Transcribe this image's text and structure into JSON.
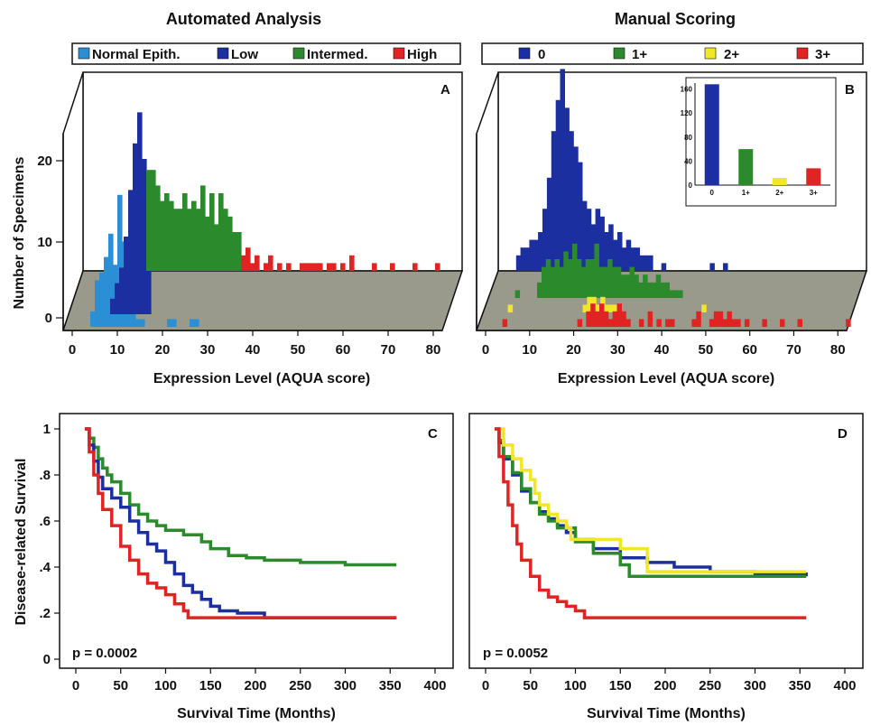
{
  "titles": {
    "left": "Automated Analysis",
    "right": "Manual Scoring"
  },
  "colors": {
    "normal": "#2b8fd6",
    "low": "#1c2fa0",
    "intermed": "#2b8a2b",
    "high": "#e02424",
    "yellow": "#f2e628",
    "floor": "#9a9a8c"
  },
  "chart_data": [
    {
      "panel": "A",
      "type": "bar",
      "title": "Automated Analysis",
      "xlabel": "Expression Level (AQUA score)",
      "ylabel": "Number of Specimens",
      "xticks": [
        "0",
        "10",
        "20",
        "30",
        "40",
        "50",
        "60",
        "70",
        "80"
      ],
      "yticks": [
        "0",
        "10",
        "20"
      ],
      "legend": [
        "Normal Epith.",
        "Low",
        "Intermed.",
        "High"
      ],
      "series": [
        {
          "name": "Normal Epith.",
          "x": [
            2,
            3,
            4,
            5,
            6,
            7,
            8,
            9,
            10,
            11,
            12,
            13,
            19,
            20,
            24,
            25
          ],
          "values": [
            2,
            6,
            7,
            9,
            12,
            8,
            17,
            11,
            5,
            2,
            1,
            1,
            1,
            1,
            1,
            1
          ]
        },
        {
          "name": "Low",
          "x": [
            4,
            5,
            6,
            7,
            8,
            9,
            10,
            11,
            12
          ],
          "values": [
            2,
            4,
            6,
            10,
            16,
            22,
            26,
            20,
            12
          ]
        },
        {
          "name": "Intermed.",
          "x": [
            12,
            13,
            14,
            15,
            16,
            17,
            18,
            19,
            20,
            21,
            22,
            23,
            24,
            25,
            26,
            27,
            28,
            29,
            30,
            31,
            32
          ],
          "values": [
            13,
            13,
            11,
            9,
            10,
            9,
            8,
            8,
            10,
            8,
            9,
            8,
            11,
            7,
            10,
            6,
            10,
            8,
            7,
            5,
            5
          ]
        },
        {
          "name": "High",
          "x": [
            33,
            34,
            35,
            36,
            38,
            39,
            41,
            43,
            46,
            47,
            48,
            49,
            50,
            52,
            53,
            55,
            57,
            62,
            66,
            71,
            76
          ],
          "values": [
            2,
            3,
            1,
            2,
            1,
            2,
            1,
            1,
            1,
            1,
            1,
            1,
            1,
            1,
            1,
            1,
            2,
            1,
            1,
            1,
            1
          ]
        }
      ]
    },
    {
      "panel": "B",
      "type": "bar",
      "title": "Manual Scoring",
      "xlabel": "Expression Level (AQUA score)",
      "xticks": [
        "0",
        "10",
        "20",
        "30",
        "40",
        "50",
        "60",
        "70",
        "80"
      ],
      "legend": [
        "0",
        "1+",
        "2+",
        "3+"
      ],
      "series": [
        {
          "name": "0",
          "x": [
            2,
            3,
            4,
            5,
            6,
            7,
            8,
            9,
            10,
            11,
            12,
            13,
            14,
            15,
            16,
            17,
            18,
            19,
            20,
            21,
            22,
            23,
            24,
            25,
            26,
            27,
            28,
            29,
            30,
            31,
            32,
            35,
            46,
            49
          ],
          "values": [
            2,
            3,
            3,
            4,
            4,
            5,
            8,
            12,
            18,
            22,
            26,
            21,
            18,
            16,
            14,
            9,
            8,
            6,
            8,
            7,
            5,
            6,
            4,
            5,
            3,
            4,
            3,
            3,
            2,
            2,
            2,
            1,
            1,
            1
          ]
        },
        {
          "name": "1+",
          "x": [
            3,
            8,
            9,
            10,
            11,
            12,
            13,
            14,
            15,
            16,
            17,
            18,
            19,
            20,
            21,
            22,
            23,
            24,
            25,
            26,
            27,
            28,
            29,
            30,
            31,
            32,
            33,
            34,
            35,
            36,
            37,
            38,
            39,
            40
          ],
          "values": [
            1,
            2,
            4,
            5,
            4,
            5,
            4,
            6,
            5,
            7,
            5,
            4,
            5,
            5,
            7,
            4,
            4,
            5,
            4,
            4,
            3,
            3,
            4,
            3,
            2,
            3,
            2,
            2,
            3,
            2,
            2,
            1,
            1,
            1
          ]
        },
        {
          "name": "2+",
          "x": [
            3,
            20,
            21,
            22,
            23,
            24,
            25,
            26,
            27,
            47
          ],
          "values": [
            1,
            1,
            2,
            2,
            1,
            2,
            1,
            1,
            1,
            1
          ]
        },
        {
          "name": "3+",
          "x": [
            3,
            20,
            22,
            23,
            24,
            25,
            26,
            27,
            28,
            29,
            30,
            31,
            34,
            36,
            38,
            40,
            41,
            46,
            47,
            50,
            51,
            52,
            53,
            54,
            55,
            56,
            58,
            62,
            66,
            70,
            81
          ],
          "values": [
            1,
            1,
            2,
            3,
            2,
            3,
            2,
            1,
            2,
            3,
            2,
            1,
            1,
            2,
            1,
            1,
            1,
            1,
            2,
            1,
            2,
            2,
            1,
            2,
            1,
            1,
            1,
            1,
            1,
            1,
            1
          ]
        }
      ],
      "inset": {
        "type": "bar",
        "categories": [
          "0",
          "1+",
          "2+",
          "3+"
        ],
        "values": [
          168,
          60,
          12,
          28
        ],
        "yticks": [
          "0",
          "40",
          "80",
          "120",
          "160"
        ],
        "ylim": [
          0,
          170
        ]
      }
    },
    {
      "panel": "C",
      "type": "line",
      "xlabel": "Survival Time (Months)",
      "ylabel": "Disease-related Survival",
      "xticks": [
        "0",
        "50",
        "100",
        "150",
        "200",
        "250",
        "300",
        "350",
        "400"
      ],
      "yticks": [
        "0",
        ".2",
        ".4",
        ".6",
        ".8",
        "1"
      ],
      "xlim": [
        0,
        400
      ],
      "ylim": [
        0,
        1
      ],
      "annotation": "p = 0.0002",
      "series": [
        {
          "name": "Intermed.",
          "color": "#2b8a2b",
          "points": [
            [
              10,
              1
            ],
            [
              15,
              0.96
            ],
            [
              20,
              0.92
            ],
            [
              25,
              0.87
            ],
            [
              30,
              0.83
            ],
            [
              35,
              0.8
            ],
            [
              40,
              0.77
            ],
            [
              50,
              0.72
            ],
            [
              60,
              0.67
            ],
            [
              70,
              0.63
            ],
            [
              80,
              0.6
            ],
            [
              90,
              0.58
            ],
            [
              100,
              0.56
            ],
            [
              120,
              0.54
            ],
            [
              140,
              0.51
            ],
            [
              150,
              0.48
            ],
            [
              170,
              0.45
            ],
            [
              190,
              0.44
            ],
            [
              210,
              0.43
            ],
            [
              250,
              0.42
            ],
            [
              300,
              0.41
            ],
            [
              357,
              0.41
            ]
          ]
        },
        {
          "name": "Low",
          "color": "#1c2fa0",
          "points": [
            [
              10,
              1
            ],
            [
              15,
              0.93
            ],
            [
              20,
              0.86
            ],
            [
              25,
              0.79
            ],
            [
              30,
              0.74
            ],
            [
              40,
              0.7
            ],
            [
              50,
              0.66
            ],
            [
              60,
              0.6
            ],
            [
              70,
              0.55
            ],
            [
              80,
              0.5
            ],
            [
              90,
              0.47
            ],
            [
              100,
              0.42
            ],
            [
              110,
              0.37
            ],
            [
              120,
              0.32
            ],
            [
              130,
              0.29
            ],
            [
              140,
              0.26
            ],
            [
              150,
              0.23
            ],
            [
              160,
              0.21
            ],
            [
              180,
              0.2
            ],
            [
              210,
              0.18
            ],
            [
              357,
              0.18
            ]
          ]
        },
        {
          "name": "High",
          "color": "#e02424",
          "points": [
            [
              10,
              1
            ],
            [
              15,
              0.9
            ],
            [
              20,
              0.8
            ],
            [
              25,
              0.72
            ],
            [
              30,
              0.65
            ],
            [
              40,
              0.58
            ],
            [
              50,
              0.49
            ],
            [
              60,
              0.43
            ],
            [
              70,
              0.37
            ],
            [
              80,
              0.33
            ],
            [
              90,
              0.31
            ],
            [
              100,
              0.28
            ],
            [
              110,
              0.24
            ],
            [
              120,
              0.21
            ],
            [
              125,
              0.18
            ],
            [
              200,
              0.18
            ],
            [
              357,
              0.18
            ]
          ]
        }
      ]
    },
    {
      "panel": "D",
      "type": "line",
      "xlabel": "Survival Time (Months)",
      "xticks": [
        "0",
        "50",
        "100",
        "150",
        "200",
        "250",
        "300",
        "350",
        "400"
      ],
      "xlim": [
        0,
        400
      ],
      "ylim": [
        0,
        1
      ],
      "annotation": "p = 0.0052",
      "series": [
        {
          "name": "0",
          "color": "#1c2fa0",
          "points": [
            [
              10,
              1
            ],
            [
              15,
              0.94
            ],
            [
              20,
              0.87
            ],
            [
              30,
              0.8
            ],
            [
              40,
              0.73
            ],
            [
              50,
              0.68
            ],
            [
              60,
              0.64
            ],
            [
              70,
              0.61
            ],
            [
              80,
              0.58
            ],
            [
              90,
              0.55
            ],
            [
              100,
              0.52
            ],
            [
              120,
              0.48
            ],
            [
              150,
              0.44
            ],
            [
              180,
              0.42
            ],
            [
              210,
              0.4
            ],
            [
              250,
              0.38
            ],
            [
              300,
              0.37
            ],
            [
              357,
              0.36
            ]
          ]
        },
        {
          "name": "1+",
          "color": "#2b8a2b",
          "points": [
            [
              10,
              1
            ],
            [
              15,
              0.95
            ],
            [
              20,
              0.88
            ],
            [
              30,
              0.81
            ],
            [
              40,
              0.74
            ],
            [
              50,
              0.68
            ],
            [
              60,
              0.63
            ],
            [
              70,
              0.6
            ],
            [
              80,
              0.57
            ],
            [
              100,
              0.51
            ],
            [
              120,
              0.46
            ],
            [
              150,
              0.41
            ],
            [
              160,
              0.36
            ],
            [
              250,
              0.36
            ],
            [
              357,
              0.36
            ]
          ]
        },
        {
          "name": "2+",
          "color": "#f2e628",
          "points": [
            [
              10,
              1
            ],
            [
              20,
              0.93
            ],
            [
              30,
              0.87
            ],
            [
              40,
              0.82
            ],
            [
              50,
              0.78
            ],
            [
              55,
              0.72
            ],
            [
              60,
              0.67
            ],
            [
              70,
              0.63
            ],
            [
              80,
              0.6
            ],
            [
              90,
              0.57
            ],
            [
              95,
              0.52
            ],
            [
              130,
              0.52
            ],
            [
              150,
              0.48
            ],
            [
              175,
              0.48
            ],
            [
              180,
              0.38
            ],
            [
              357,
              0.38
            ]
          ]
        },
        {
          "name": "3+",
          "color": "#e02424",
          "points": [
            [
              10,
              1
            ],
            [
              15,
              0.88
            ],
            [
              20,
              0.77
            ],
            [
              25,
              0.67
            ],
            [
              30,
              0.58
            ],
            [
              35,
              0.5
            ],
            [
              40,
              0.43
            ],
            [
              50,
              0.36
            ],
            [
              60,
              0.3
            ],
            [
              70,
              0.27
            ],
            [
              80,
              0.25
            ],
            [
              90,
              0.23
            ],
            [
              100,
              0.21
            ],
            [
              110,
              0.18
            ],
            [
              357,
              0.18
            ]
          ]
        }
      ]
    }
  ]
}
